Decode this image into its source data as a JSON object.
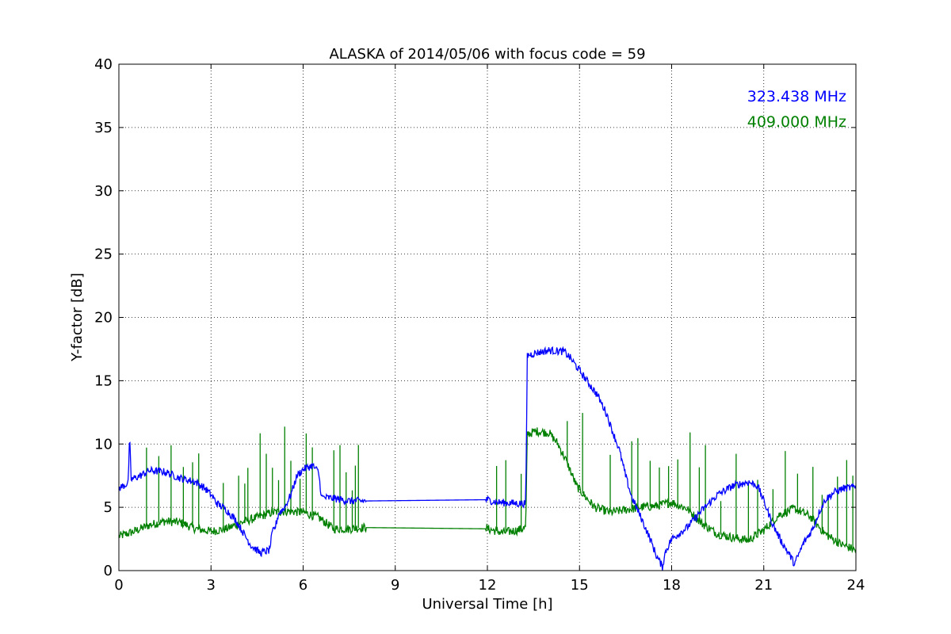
{
  "chart_data": {
    "type": "line",
    "title": "ALASKA of 2014/05/06 with focus code = 59",
    "xlabel": "Universal Time [h]",
    "ylabel": "Y-factor [dB]",
    "xlim": [
      0,
      24
    ],
    "ylim": [
      0,
      40
    ],
    "xticks": [
      "0",
      "3",
      "6",
      "9",
      "12",
      "15",
      "18",
      "21",
      "24"
    ],
    "yticks": [
      "0",
      "5",
      "10",
      "15",
      "20",
      "25",
      "30",
      "35",
      "40"
    ],
    "grid": true,
    "legend_position": "top-right",
    "series": [
      {
        "name": "323.438 MHz",
        "color": "#0000ff",
        "noise": 0.3,
        "points": [
          [
            0.0,
            6.5
          ],
          [
            0.3,
            6.9
          ],
          [
            0.35,
            10.5
          ],
          [
            0.4,
            7.2
          ],
          [
            0.7,
            7.5
          ],
          [
            1.0,
            7.9
          ],
          [
            1.5,
            7.8
          ],
          [
            2.0,
            7.3
          ],
          [
            2.5,
            7.0
          ],
          [
            2.8,
            6.5
          ],
          [
            3.0,
            6.0
          ],
          [
            3.2,
            5.3
          ],
          [
            3.5,
            4.8
          ],
          [
            3.8,
            4.0
          ],
          [
            4.0,
            3.2
          ],
          [
            4.3,
            2.0
          ],
          [
            4.6,
            1.4
          ],
          [
            4.9,
            1.6
          ],
          [
            5.0,
            3.0
          ],
          [
            5.1,
            3.5
          ],
          [
            5.2,
            4.5
          ],
          [
            5.4,
            5.0
          ],
          [
            5.6,
            6.0
          ],
          [
            5.8,
            7.5
          ],
          [
            6.0,
            8.0
          ],
          [
            6.3,
            8.3
          ],
          [
            6.5,
            7.8
          ],
          [
            6.6,
            5.8
          ],
          [
            7.0,
            5.7
          ],
          [
            7.5,
            5.5
          ],
          [
            8.0,
            5.5
          ],
          [
            12.0,
            5.6
          ],
          [
            12.3,
            5.4
          ],
          [
            13.0,
            5.3
          ],
          [
            13.25,
            5.3
          ],
          [
            13.3,
            17.0
          ],
          [
            13.6,
            17.2
          ],
          [
            14.0,
            17.4
          ],
          [
            14.5,
            17.3
          ],
          [
            14.7,
            16.8
          ],
          [
            15.0,
            15.8
          ],
          [
            15.3,
            14.8
          ],
          [
            15.6,
            13.8
          ],
          [
            15.9,
            12.3
          ],
          [
            16.0,
            11.5
          ],
          [
            16.3,
            9.5
          ],
          [
            16.5,
            7.5
          ],
          [
            16.7,
            5.8
          ],
          [
            17.0,
            4.2
          ],
          [
            17.3,
            2.5
          ],
          [
            17.5,
            1.2
          ],
          [
            17.7,
            0.3
          ],
          [
            17.8,
            1.5
          ],
          [
            18.0,
            2.5
          ],
          [
            18.5,
            3.4
          ],
          [
            19.0,
            4.8
          ],
          [
            19.5,
            6.0
          ],
          [
            20.0,
            6.7
          ],
          [
            20.5,
            7.0
          ],
          [
            20.8,
            6.7
          ],
          [
            21.0,
            5.5
          ],
          [
            21.3,
            3.6
          ],
          [
            21.6,
            2.2
          ],
          [
            21.9,
            1.0
          ],
          [
            22.0,
            0.5
          ],
          [
            22.3,
            2.2
          ],
          [
            22.6,
            3.3
          ],
          [
            22.8,
            4.6
          ],
          [
            23.0,
            5.6
          ],
          [
            23.3,
            6.2
          ],
          [
            23.6,
            6.5
          ],
          [
            24.0,
            6.6
          ]
        ]
      },
      {
        "name": "409.000 MHz",
        "color": "#008000",
        "noise": 0.35,
        "points": [
          [
            0.0,
            2.7
          ],
          [
            0.5,
            3.1
          ],
          [
            1.0,
            3.6
          ],
          [
            1.5,
            3.9
          ],
          [
            2.0,
            3.8
          ],
          [
            2.5,
            3.3
          ],
          [
            3.0,
            3.1
          ],
          [
            3.5,
            3.3
          ],
          [
            4.0,
            3.8
          ],
          [
            4.5,
            4.2
          ],
          [
            5.0,
            4.6
          ],
          [
            5.5,
            4.7
          ],
          [
            6.0,
            4.6
          ],
          [
            6.5,
            4.2
          ],
          [
            7.0,
            3.3
          ],
          [
            7.5,
            3.3
          ],
          [
            8.0,
            3.4
          ],
          [
            12.0,
            3.3
          ],
          [
            12.5,
            3.0
          ],
          [
            13.0,
            3.2
          ],
          [
            13.25,
            3.4
          ],
          [
            13.3,
            10.8
          ],
          [
            13.6,
            11.0
          ],
          [
            14.0,
            10.9
          ],
          [
            14.3,
            10.0
          ],
          [
            14.6,
            8.5
          ],
          [
            14.9,
            6.7
          ],
          [
            15.2,
            5.8
          ],
          [
            15.5,
            5.0
          ],
          [
            16.0,
            4.6
          ],
          [
            16.5,
            4.8
          ],
          [
            17.0,
            5.0
          ],
          [
            17.5,
            5.1
          ],
          [
            18.0,
            5.4
          ],
          [
            18.5,
            4.9
          ],
          [
            19.0,
            3.7
          ],
          [
            19.5,
            2.9
          ],
          [
            20.0,
            2.6
          ],
          [
            20.5,
            2.4
          ],
          [
            21.0,
            3.2
          ],
          [
            21.5,
            4.4
          ],
          [
            22.0,
            4.9
          ],
          [
            22.5,
            4.3
          ],
          [
            23.0,
            2.9
          ],
          [
            23.5,
            2.1
          ],
          [
            24.0,
            1.6
          ]
        ],
        "spikes": [
          0.9,
          1.3,
          1.7,
          2.1,
          2.4,
          2.6,
          3.4,
          3.9,
          4.1,
          4.2,
          4.6,
          4.8,
          5.0,
          5.2,
          5.4,
          5.6,
          5.9,
          6.1,
          6.3,
          7.0,
          7.2,
          7.4,
          7.6,
          7.7,
          7.8,
          12.3,
          12.6,
          13.1,
          14.6,
          15.1,
          16.0,
          16.7,
          16.9,
          17.3,
          17.6,
          17.9,
          18.2,
          18.6,
          18.9,
          19.1,
          19.6,
          20.1,
          20.5,
          20.8,
          21.3,
          21.7,
          22.1,
          22.6,
          22.9,
          23.1,
          23.4,
          23.7,
          23.9
        ]
      }
    ]
  }
}
